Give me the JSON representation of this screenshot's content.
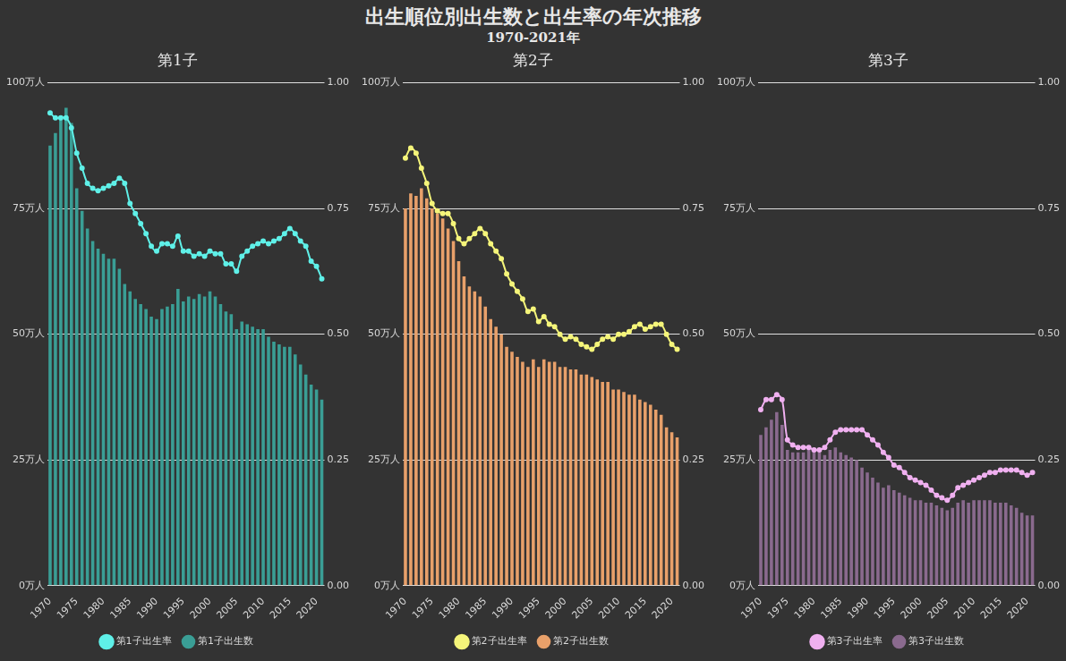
{
  "title": "出生順位別出生数と出生率の年次推移",
  "subtitle": "1970-2021年",
  "chart_data": [
    {
      "type": "bar",
      "title": "第1子",
      "categories": [
        "1970",
        null,
        null,
        null,
        null,
        "1975",
        null,
        null,
        null,
        null,
        "1980",
        null,
        null,
        null,
        null,
        "1985",
        null,
        null,
        null,
        null,
        "1990",
        null,
        null,
        null,
        null,
        "1995",
        null,
        null,
        null,
        null,
        "2000",
        null,
        null,
        null,
        null,
        "2005",
        null,
        null,
        null,
        null,
        "2010",
        null,
        null,
        null,
        null,
        "2015",
        null,
        null,
        null,
        null,
        "2020",
        null
      ],
      "series": [
        {
          "name": "第1子出生数",
          "type": "bar",
          "color": "#3a9e95",
          "axis": "y",
          "values": [
            87.5,
            90,
            93,
            95,
            92,
            79,
            74.5,
            71,
            68.5,
            67,
            66,
            65,
            65,
            63,
            60,
            58.5,
            57,
            56,
            55,
            53.5,
            53,
            55,
            55.5,
            56,
            59,
            56.5,
            57.5,
            57,
            58,
            57.5,
            58.5,
            57.5,
            56,
            54.5,
            54,
            51,
            52.5,
            52,
            51.5,
            51,
            51,
            49.5,
            48.5,
            48,
            47.5,
            47.5,
            46,
            44,
            42,
            40,
            39,
            37
          ]
        },
        {
          "name": "第1子出生率",
          "type": "line",
          "color": "#5ff0e8",
          "axis": "y2",
          "marker": "circle",
          "values": [
            0.94,
            0.93,
            0.93,
            0.93,
            0.91,
            0.86,
            0.83,
            0.8,
            0.79,
            0.785,
            0.79,
            0.795,
            0.8,
            0.81,
            0.8,
            0.76,
            0.74,
            0.72,
            0.7,
            0.675,
            0.665,
            0.68,
            0.68,
            0.675,
            0.695,
            0.665,
            0.665,
            0.655,
            0.66,
            0.655,
            0.665,
            0.66,
            0.66,
            0.64,
            0.64,
            0.625,
            0.655,
            0.665,
            0.675,
            0.68,
            0.685,
            0.68,
            0.685,
            0.69,
            0.7,
            0.71,
            0.7,
            0.685,
            0.675,
            0.645,
            0.635,
            0.61
          ]
        }
      ],
      "ylim": [
        0,
        100
      ],
      "yticks": [
        {
          "value": 0,
          "label": "0万人"
        },
        {
          "value": 25,
          "label": "25万人"
        },
        {
          "value": 50,
          "label": "50万人"
        },
        {
          "value": 75,
          "label": "75万人"
        },
        {
          "value": 100,
          "label": "100万人"
        }
      ],
      "y2lim": [
        0,
        1
      ],
      "y2ticks": [
        {
          "value": 0,
          "label": "0.00"
        },
        {
          "value": 0.25,
          "label": "0.25"
        },
        {
          "value": 0.5,
          "label": "0.50"
        },
        {
          "value": 0.75,
          "label": "0.75"
        },
        {
          "value": 1,
          "label": "1.00"
        }
      ],
      "grid": true,
      "legend": "bottom"
    },
    {
      "type": "bar",
      "title": "第2子",
      "categories": [
        "1970",
        null,
        null,
        null,
        null,
        "1975",
        null,
        null,
        null,
        null,
        "1980",
        null,
        null,
        null,
        null,
        "1985",
        null,
        null,
        null,
        null,
        "1990",
        null,
        null,
        null,
        null,
        "1995",
        null,
        null,
        null,
        null,
        "2000",
        null,
        null,
        null,
        null,
        "2005",
        null,
        null,
        null,
        null,
        "2010",
        null,
        null,
        null,
        null,
        "2015",
        null,
        null,
        null,
        null,
        "2020",
        null
      ],
      "series": [
        {
          "name": "第2子出生数",
          "type": "bar",
          "color": "#e8a06a",
          "axis": "y",
          "values": [
            75,
            78,
            77.5,
            79,
            77,
            75,
            74,
            73,
            71,
            68.5,
            64.5,
            61.5,
            59.5,
            58.5,
            57.5,
            55.5,
            53,
            51.5,
            50,
            47.5,
            46.5,
            45.5,
            44.5,
            43.5,
            45,
            43.5,
            45,
            44.5,
            44.5,
            43.5,
            43.5,
            43,
            43,
            42,
            42,
            41.5,
            41,
            40.5,
            40.5,
            39,
            39,
            38.5,
            38,
            38,
            37,
            36.5,
            36,
            35,
            34,
            31.5,
            30.5,
            29.5
          ]
        },
        {
          "name": "第2子出生率",
          "type": "line",
          "color": "#f5f57a",
          "axis": "y2",
          "marker": "circle",
          "values": [
            0.85,
            0.87,
            0.86,
            0.83,
            0.8,
            0.76,
            0.745,
            0.74,
            0.74,
            0.72,
            0.69,
            0.68,
            0.69,
            0.7,
            0.71,
            0.7,
            0.68,
            0.665,
            0.65,
            0.62,
            0.6,
            0.585,
            0.57,
            0.545,
            0.55,
            0.525,
            0.535,
            0.52,
            0.515,
            0.5,
            0.49,
            0.495,
            0.49,
            0.48,
            0.475,
            0.47,
            0.48,
            0.49,
            0.495,
            0.49,
            0.5,
            0.5,
            0.505,
            0.515,
            0.52,
            0.51,
            0.515,
            0.52,
            0.52,
            0.5,
            0.48,
            0.47
          ]
        }
      ],
      "ylim": [
        0,
        100
      ],
      "yticks": [
        {
          "value": 0,
          "label": "0万人"
        },
        {
          "value": 25,
          "label": "25万人"
        },
        {
          "value": 50,
          "label": "50万人"
        },
        {
          "value": 75,
          "label": "75万人"
        },
        {
          "value": 100,
          "label": "100万人"
        }
      ],
      "y2lim": [
        0,
        1
      ],
      "y2ticks": [
        {
          "value": 0,
          "label": "0.00"
        },
        {
          "value": 0.25,
          "label": "0.25"
        },
        {
          "value": 0.5,
          "label": "0.50"
        },
        {
          "value": 0.75,
          "label": "0.75"
        },
        {
          "value": 1,
          "label": "1.00"
        }
      ],
      "grid": true,
      "legend": "bottom"
    },
    {
      "type": "bar",
      "title": "第3子",
      "categories": [
        "1970",
        null,
        null,
        null,
        null,
        "1975",
        null,
        null,
        null,
        null,
        "1980",
        null,
        null,
        null,
        null,
        "1985",
        null,
        null,
        null,
        null,
        "1990",
        null,
        null,
        null,
        null,
        "1995",
        null,
        null,
        null,
        null,
        "2000",
        null,
        null,
        null,
        null,
        "2005",
        null,
        null,
        null,
        null,
        "2010",
        null,
        null,
        null,
        null,
        "2015",
        null,
        null,
        null,
        null,
        "2020",
        null
      ],
      "series": [
        {
          "name": "第3子出生数",
          "type": "bar",
          "color": "#8a6a8e",
          "axis": "y",
          "values": [
            30,
            31.5,
            33,
            34.5,
            32,
            27,
            26.5,
            26.5,
            26.5,
            27,
            27,
            26.5,
            26,
            27,
            27.5,
            26.5,
            26,
            25.5,
            25,
            23.5,
            22.5,
            21.5,
            20.5,
            19.5,
            20,
            19,
            18.5,
            18,
            17.5,
            17,
            17,
            16.5,
            16.5,
            16,
            15.5,
            15,
            15.5,
            16.5,
            17,
            16.5,
            17,
            17,
            17,
            17,
            16.5,
            16.5,
            16.5,
            16,
            15.5,
            14.5,
            14,
            14
          ]
        },
        {
          "name": "第3子出生率",
          "type": "line",
          "color": "#f0b0f0",
          "axis": "y2",
          "marker": "circle",
          "values": [
            0.35,
            0.37,
            0.37,
            0.38,
            0.37,
            0.29,
            0.28,
            0.275,
            0.275,
            0.275,
            0.27,
            0.27,
            0.275,
            0.29,
            0.305,
            0.31,
            0.31,
            0.31,
            0.31,
            0.31,
            0.3,
            0.29,
            0.28,
            0.265,
            0.255,
            0.24,
            0.235,
            0.225,
            0.215,
            0.21,
            0.205,
            0.2,
            0.19,
            0.18,
            0.175,
            0.17,
            0.18,
            0.195,
            0.2,
            0.205,
            0.21,
            0.215,
            0.22,
            0.225,
            0.225,
            0.23,
            0.23,
            0.23,
            0.23,
            0.225,
            0.22,
            0.225
          ]
        }
      ],
      "ylim": [
        0,
        100
      ],
      "yticks": [
        {
          "value": 0,
          "label": "0万人"
        },
        {
          "value": 25,
          "label": "25万人"
        },
        {
          "value": 50,
          "label": "50万人"
        },
        {
          "value": 75,
          "label": "75万人"
        },
        {
          "value": 100,
          "label": "100万人"
        }
      ],
      "y2lim": [
        0,
        1
      ],
      "y2ticks": [
        {
          "value": 0,
          "label": "0.00"
        },
        {
          "value": 0.25,
          "label": "0.25"
        },
        {
          "value": 0.5,
          "label": "0.50"
        },
        {
          "value": 0.75,
          "label": "0.75"
        },
        {
          "value": 1,
          "label": "1.00"
        }
      ],
      "grid": true,
      "legend": "bottom"
    }
  ]
}
